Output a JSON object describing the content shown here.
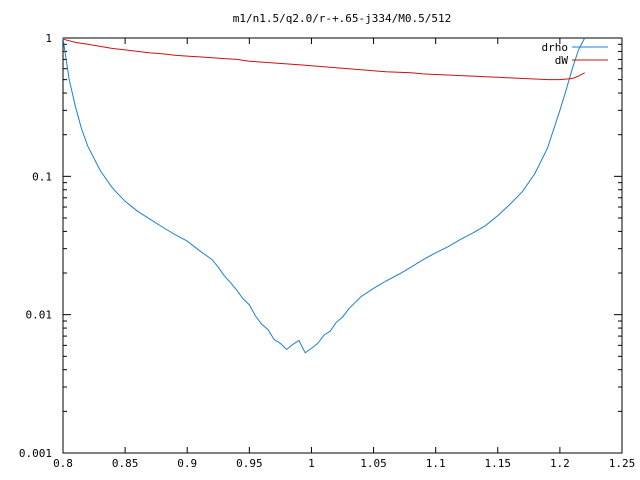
{
  "chart_data": {
    "type": "line",
    "title": "m1/n1.5/q2.0/r-+.65-j334/M0.5/512",
    "xlabel": "",
    "ylabel": "",
    "xlim": [
      0.8,
      1.25
    ],
    "ylim": [
      0.001,
      1
    ],
    "y_scale": "log",
    "x_ticks": [
      0.8,
      0.85,
      0.9,
      0.95,
      1,
      1.05,
      1.1,
      1.15,
      1.2,
      1.25
    ],
    "x_tick_labels": [
      "0.8",
      "0.85",
      "0.9",
      "0.95",
      "1",
      "1.05",
      "1.1",
      "1.15",
      "1.2",
      "1.25"
    ],
    "y_ticks": [
      0.001,
      0.01,
      0.1,
      1
    ],
    "y_tick_labels": [
      "0.001",
      "0.01",
      "0.1",
      "1"
    ],
    "grid": false,
    "legend_position": "top-right",
    "series": [
      {
        "name": "drho",
        "color": "#1a7fd4",
        "x": [
          0.8,
          0.802,
          0.805,
          0.81,
          0.815,
          0.82,
          0.83,
          0.84,
          0.85,
          0.86,
          0.87,
          0.88,
          0.89,
          0.9,
          0.91,
          0.92,
          0.925,
          0.93,
          0.935,
          0.94,
          0.945,
          0.95,
          0.955,
          0.96,
          0.965,
          0.97,
          0.975,
          0.98,
          0.985,
          0.99,
          0.995,
          1.0,
          1.005,
          1.01,
          1.015,
          1.02,
          1.025,
          1.03,
          1.035,
          1.04,
          1.05,
          1.06,
          1.07,
          1.08,
          1.09,
          1.1,
          1.11,
          1.12,
          1.13,
          1.14,
          1.15,
          1.16,
          1.17,
          1.18,
          1.19,
          1.2,
          1.205,
          1.21,
          1.215,
          1.22
        ],
        "y": [
          1.0,
          0.75,
          0.5,
          0.32,
          0.22,
          0.165,
          0.11,
          0.082,
          0.066,
          0.056,
          0.049,
          0.043,
          0.038,
          0.034,
          0.029,
          0.025,
          0.022,
          0.019,
          0.017,
          0.015,
          0.013,
          0.0118,
          0.0098,
          0.0085,
          0.0078,
          0.0066,
          0.0062,
          0.0056,
          0.0061,
          0.0065,
          0.0053,
          0.0057,
          0.0062,
          0.0071,
          0.0076,
          0.0088,
          0.0096,
          0.011,
          0.0122,
          0.0135,
          0.0155,
          0.0175,
          0.0195,
          0.022,
          0.025,
          0.028,
          0.031,
          0.035,
          0.039,
          0.044,
          0.052,
          0.063,
          0.078,
          0.105,
          0.16,
          0.3,
          0.42,
          0.6,
          0.82,
          1.0
        ]
      },
      {
        "name": "dW",
        "color": "#cc1111",
        "x": [
          0.8,
          0.81,
          0.82,
          0.83,
          0.84,
          0.85,
          0.86,
          0.87,
          0.88,
          0.89,
          0.9,
          0.91,
          0.92,
          0.93,
          0.94,
          0.95,
          0.96,
          0.97,
          0.98,
          0.99,
          1.0,
          1.01,
          1.02,
          1.03,
          1.04,
          1.05,
          1.06,
          1.07,
          1.08,
          1.09,
          1.1,
          1.11,
          1.12,
          1.13,
          1.14,
          1.15,
          1.16,
          1.17,
          1.18,
          1.19,
          1.2,
          1.21,
          1.215,
          1.22
        ],
        "y": [
          0.98,
          0.93,
          0.9,
          0.87,
          0.84,
          0.82,
          0.8,
          0.78,
          0.77,
          0.75,
          0.74,
          0.73,
          0.72,
          0.71,
          0.7,
          0.68,
          0.67,
          0.66,
          0.65,
          0.64,
          0.63,
          0.62,
          0.61,
          0.6,
          0.59,
          0.58,
          0.57,
          0.565,
          0.56,
          0.55,
          0.545,
          0.54,
          0.535,
          0.53,
          0.525,
          0.52,
          0.515,
          0.51,
          0.505,
          0.5,
          0.5,
          0.51,
          0.53,
          0.56
        ]
      }
    ]
  }
}
